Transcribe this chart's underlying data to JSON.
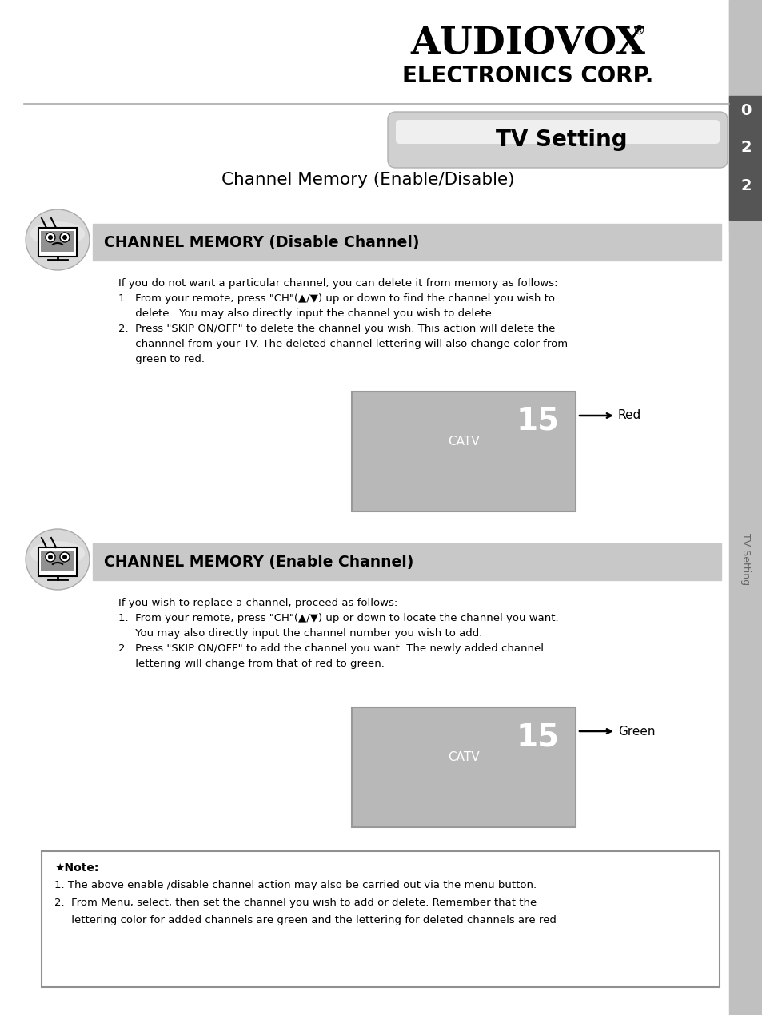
{
  "bg_color": "#ffffff",
  "sidebar_color": "#c0c0c0",
  "sidebar_dark_color": "#505050",
  "logo_line1": "AUDIOVOX",
  "logo_line2": "ELECTRONICS CORP.",
  "logo_reg": "®",
  "tab_text": "TV Setting",
  "subtitle": "Channel Memory (Enable/Disable)",
  "section1_header": "CHANNEL MEMORY (Disable Channel)",
  "section1_body": [
    "If you do not want a particular channel, you can delete it from memory as follows:",
    "1.  From your remote, press \"CH\"(▲/▼) up or down to find the channel you wish to",
    "     delete.  You may also directly input the channel you wish to delete.",
    "2.  Press \"SKIP ON/OFF\" to delete the channel you wish. This action will delete the",
    "     channnel from your TV. The deleted channel lettering will also change color from",
    "     green to red."
  ],
  "section2_header": "CHANNEL MEMORY (Enable Channel)",
  "section2_body": [
    "If you wish to replace a channel, proceed as follows:",
    "1.  From your remote, press \"CH\"(▲/▼) up or down to locate the channel you want.",
    "     You may also directly input the channel number you wish to add.",
    "2.  Press \"SKIP ON/OFF\" to add the channel you want. The newly added channel",
    "     lettering will change from that of red to green."
  ],
  "note_star": "★Note:",
  "note_lines": [
    "1. The above enable /disable channel action may also be carried out via the menu button.",
    "2.  From Menu, select, then set the channel you wish to add or delete. Remember that the",
    "     lettering color for added channels are green and the lettering for deleted channels are red"
  ],
  "ch_num": "15",
  "ch_sub": "CATV",
  "label_red": "Red",
  "label_green": "Green",
  "header_bar_color": "#c8c8c8",
  "ch_box_color": "#b8b8b8",
  "sidebar_nums": [
    "0",
    "2",
    "2"
  ],
  "sidebar_label": "TV Setting",
  "note_border": "#909090",
  "note_bg": "#ffffff"
}
